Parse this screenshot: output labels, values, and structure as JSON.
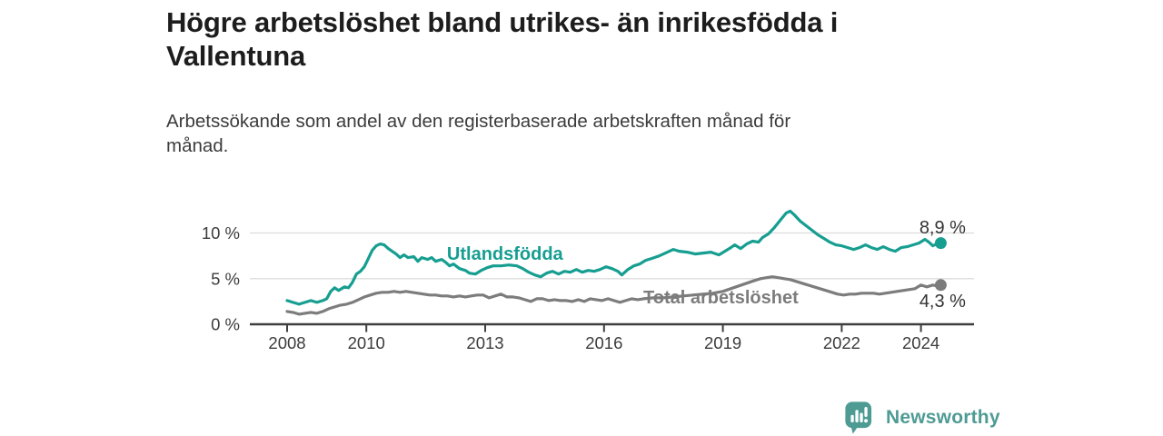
{
  "header": {
    "title": "Högre arbetslöshet bland utrikes- än inrikesfödda i\nVallentuna",
    "subtitle": "Arbetssökande som andel av den registerbaserade arbetskraften månad för\nmånad."
  },
  "footer": {
    "brand": "Newsworthy",
    "brand_color": "#4E9B94"
  },
  "chart_data": {
    "type": "line",
    "title": "Högre arbetslöshet bland utrikes- än inrikesfödda i Vallentuna",
    "subtitle": "Arbetssökande som andel av den registerbaserade arbetskraften månad för månad.",
    "grid": "horizontal",
    "x_axis": {
      "ticks": [
        2008,
        2010,
        2013,
        2016,
        2019,
        2022,
        2024
      ],
      "range": [
        2007.06,
        2025.4
      ]
    },
    "y_axis": {
      "unit": "%",
      "range": [
        0,
        13
      ],
      "ticks": [
        {
          "value": 0,
          "label": "0 %"
        },
        {
          "value": 5,
          "label": "5 %"
        },
        {
          "value": 10,
          "label": "10 %"
        }
      ]
    },
    "series": [
      {
        "id": "utlandsfodda",
        "name": "Utlandsfödda",
        "color": "#169E91",
        "end_label": "8,9 %",
        "end_value": 8.9,
        "end_label_position": "above",
        "inline_label_at": {
          "x": 2013.5,
          "y": 7.75
        },
        "points": [
          [
            2008.0,
            2.6
          ],
          [
            2008.15,
            2.4
          ],
          [
            2008.3,
            2.2
          ],
          [
            2008.45,
            2.4
          ],
          [
            2008.6,
            2.6
          ],
          [
            2008.75,
            2.4
          ],
          [
            2008.9,
            2.6
          ],
          [
            2009.0,
            2.8
          ],
          [
            2009.1,
            3.6
          ],
          [
            2009.2,
            4.0
          ],
          [
            2009.3,
            3.7
          ],
          [
            2009.45,
            4.1
          ],
          [
            2009.55,
            4.0
          ],
          [
            2009.65,
            4.6
          ],
          [
            2009.75,
            5.5
          ],
          [
            2009.85,
            5.8
          ],
          [
            2009.95,
            6.3
          ],
          [
            2010.05,
            7.2
          ],
          [
            2010.15,
            8.1
          ],
          [
            2010.25,
            8.6
          ],
          [
            2010.35,
            8.8
          ],
          [
            2010.45,
            8.7
          ],
          [
            2010.55,
            8.3
          ],
          [
            2010.65,
            8.0
          ],
          [
            2010.75,
            7.7
          ],
          [
            2010.85,
            7.3
          ],
          [
            2010.95,
            7.6
          ],
          [
            2011.05,
            7.3
          ],
          [
            2011.2,
            7.4
          ],
          [
            2011.3,
            6.9
          ],
          [
            2011.4,
            7.3
          ],
          [
            2011.55,
            7.1
          ],
          [
            2011.65,
            7.3
          ],
          [
            2011.75,
            6.9
          ],
          [
            2011.9,
            7.1
          ],
          [
            2012.0,
            6.8
          ],
          [
            2012.1,
            6.4
          ],
          [
            2012.2,
            6.6
          ],
          [
            2012.35,
            6.1
          ],
          [
            2012.5,
            5.9
          ],
          [
            2012.6,
            5.6
          ],
          [
            2012.75,
            5.5
          ],
          [
            2012.9,
            5.9
          ],
          [
            2013.05,
            6.2
          ],
          [
            2013.2,
            6.4
          ],
          [
            2013.4,
            6.4
          ],
          [
            2013.6,
            6.5
          ],
          [
            2013.8,
            6.4
          ],
          [
            2013.95,
            6.1
          ],
          [
            2014.1,
            5.7
          ],
          [
            2014.25,
            5.4
          ],
          [
            2014.4,
            5.2
          ],
          [
            2014.55,
            5.6
          ],
          [
            2014.7,
            5.8
          ],
          [
            2014.85,
            5.5
          ],
          [
            2015.0,
            5.8
          ],
          [
            2015.15,
            5.7
          ],
          [
            2015.3,
            6.0
          ],
          [
            2015.45,
            5.7
          ],
          [
            2015.6,
            5.9
          ],
          [
            2015.75,
            5.8
          ],
          [
            2015.9,
            6.0
          ],
          [
            2016.05,
            6.3
          ],
          [
            2016.2,
            6.1
          ],
          [
            2016.35,
            5.8
          ],
          [
            2016.45,
            5.4
          ],
          [
            2016.6,
            6.0
          ],
          [
            2016.75,
            6.4
          ],
          [
            2016.9,
            6.6
          ],
          [
            2017.05,
            7.0
          ],
          [
            2017.2,
            7.2
          ],
          [
            2017.4,
            7.5
          ],
          [
            2017.6,
            7.9
          ],
          [
            2017.75,
            8.2
          ],
          [
            2017.9,
            8.0
          ],
          [
            2018.1,
            7.9
          ],
          [
            2018.3,
            7.7
          ],
          [
            2018.5,
            7.8
          ],
          [
            2018.7,
            7.9
          ],
          [
            2018.9,
            7.6
          ],
          [
            2019.05,
            8.0
          ],
          [
            2019.2,
            8.4
          ],
          [
            2019.3,
            8.7
          ],
          [
            2019.45,
            8.3
          ],
          [
            2019.6,
            8.8
          ],
          [
            2019.75,
            9.1
          ],
          [
            2019.9,
            9.0
          ],
          [
            2020.0,
            9.5
          ],
          [
            2020.15,
            9.9
          ],
          [
            2020.3,
            10.6
          ],
          [
            2020.45,
            11.4
          ],
          [
            2020.6,
            12.2
          ],
          [
            2020.7,
            12.4
          ],
          [
            2020.8,
            12.0
          ],
          [
            2020.95,
            11.3
          ],
          [
            2021.1,
            10.8
          ],
          [
            2021.25,
            10.3
          ],
          [
            2021.4,
            9.8
          ],
          [
            2021.55,
            9.4
          ],
          [
            2021.7,
            9.0
          ],
          [
            2021.85,
            8.7
          ],
          [
            2022.0,
            8.6
          ],
          [
            2022.15,
            8.4
          ],
          [
            2022.3,
            8.2
          ],
          [
            2022.45,
            8.4
          ],
          [
            2022.6,
            8.7
          ],
          [
            2022.75,
            8.4
          ],
          [
            2022.9,
            8.2
          ],
          [
            2023.05,
            8.5
          ],
          [
            2023.2,
            8.2
          ],
          [
            2023.35,
            8.0
          ],
          [
            2023.5,
            8.4
          ],
          [
            2023.65,
            8.5
          ],
          [
            2023.8,
            8.7
          ],
          [
            2023.95,
            8.9
          ],
          [
            2024.1,
            9.3
          ],
          [
            2024.2,
            9.0
          ],
          [
            2024.3,
            8.6
          ],
          [
            2024.4,
            8.8
          ],
          [
            2024.5,
            8.9
          ]
        ]
      },
      {
        "id": "total",
        "name": "Total arbetslöshet",
        "color": "#7C7C7C",
        "end_label": "4,3 %",
        "end_value": 4.3,
        "end_label_position": "below",
        "inline_label_at": {
          "x": 2018.95,
          "y": 3.0
        },
        "points": [
          [
            2008.0,
            1.4
          ],
          [
            2008.15,
            1.3
          ],
          [
            2008.3,
            1.1
          ],
          [
            2008.45,
            1.2
          ],
          [
            2008.6,
            1.3
          ],
          [
            2008.75,
            1.2
          ],
          [
            2008.9,
            1.4
          ],
          [
            2009.05,
            1.7
          ],
          [
            2009.2,
            1.9
          ],
          [
            2009.35,
            2.1
          ],
          [
            2009.5,
            2.2
          ],
          [
            2009.65,
            2.4
          ],
          [
            2009.8,
            2.7
          ],
          [
            2009.95,
            3.0
          ],
          [
            2010.1,
            3.2
          ],
          [
            2010.25,
            3.4
          ],
          [
            2010.4,
            3.5
          ],
          [
            2010.55,
            3.5
          ],
          [
            2010.7,
            3.6
          ],
          [
            2010.85,
            3.5
          ],
          [
            2011.0,
            3.6
          ],
          [
            2011.15,
            3.5
          ],
          [
            2011.3,
            3.4
          ],
          [
            2011.45,
            3.3
          ],
          [
            2011.6,
            3.2
          ],
          [
            2011.75,
            3.2
          ],
          [
            2011.9,
            3.1
          ],
          [
            2012.05,
            3.1
          ],
          [
            2012.2,
            3.0
          ],
          [
            2012.35,
            3.1
          ],
          [
            2012.5,
            3.0
          ],
          [
            2012.65,
            3.1
          ],
          [
            2012.8,
            3.2
          ],
          [
            2012.95,
            3.2
          ],
          [
            2013.1,
            2.9
          ],
          [
            2013.25,
            3.1
          ],
          [
            2013.4,
            3.3
          ],
          [
            2013.55,
            3.0
          ],
          [
            2013.7,
            3.0
          ],
          [
            2013.85,
            2.9
          ],
          [
            2014.0,
            2.7
          ],
          [
            2014.15,
            2.5
          ],
          [
            2014.3,
            2.8
          ],
          [
            2014.45,
            2.8
          ],
          [
            2014.6,
            2.6
          ],
          [
            2014.75,
            2.7
          ],
          [
            2014.9,
            2.6
          ],
          [
            2015.05,
            2.6
          ],
          [
            2015.2,
            2.5
          ],
          [
            2015.35,
            2.7
          ],
          [
            2015.5,
            2.5
          ],
          [
            2015.65,
            2.8
          ],
          [
            2015.8,
            2.7
          ],
          [
            2015.95,
            2.6
          ],
          [
            2016.1,
            2.8
          ],
          [
            2016.25,
            2.6
          ],
          [
            2016.4,
            2.4
          ],
          [
            2016.55,
            2.6
          ],
          [
            2016.7,
            2.8
          ],
          [
            2016.85,
            2.7
          ],
          [
            2017.0,
            2.8
          ],
          [
            2017.25,
            2.9
          ],
          [
            2017.5,
            2.9
          ],
          [
            2017.75,
            3.0
          ],
          [
            2018.0,
            3.1
          ],
          [
            2018.25,
            3.2
          ],
          [
            2018.5,
            3.3
          ],
          [
            2018.75,
            3.4
          ],
          [
            2019.0,
            3.6
          ],
          [
            2019.2,
            3.9
          ],
          [
            2019.4,
            4.2
          ],
          [
            2019.6,
            4.5
          ],
          [
            2019.8,
            4.8
          ],
          [
            2019.95,
            5.0
          ],
          [
            2020.1,
            5.1
          ],
          [
            2020.25,
            5.2
          ],
          [
            2020.4,
            5.1
          ],
          [
            2020.55,
            5.0
          ],
          [
            2020.7,
            4.9
          ],
          [
            2020.85,
            4.7
          ],
          [
            2021.0,
            4.5
          ],
          [
            2021.15,
            4.3
          ],
          [
            2021.3,
            4.1
          ],
          [
            2021.45,
            3.9
          ],
          [
            2021.6,
            3.7
          ],
          [
            2021.75,
            3.5
          ],
          [
            2021.9,
            3.3
          ],
          [
            2022.05,
            3.2
          ],
          [
            2022.2,
            3.3
          ],
          [
            2022.35,
            3.3
          ],
          [
            2022.5,
            3.4
          ],
          [
            2022.65,
            3.4
          ],
          [
            2022.8,
            3.4
          ],
          [
            2022.95,
            3.3
          ],
          [
            2023.1,
            3.4
          ],
          [
            2023.25,
            3.5
          ],
          [
            2023.4,
            3.6
          ],
          [
            2023.55,
            3.7
          ],
          [
            2023.7,
            3.8
          ],
          [
            2023.85,
            3.9
          ],
          [
            2024.0,
            4.3
          ],
          [
            2024.15,
            4.1
          ],
          [
            2024.3,
            4.3
          ],
          [
            2024.4,
            4.2
          ],
          [
            2024.5,
            4.3
          ]
        ]
      }
    ]
  }
}
